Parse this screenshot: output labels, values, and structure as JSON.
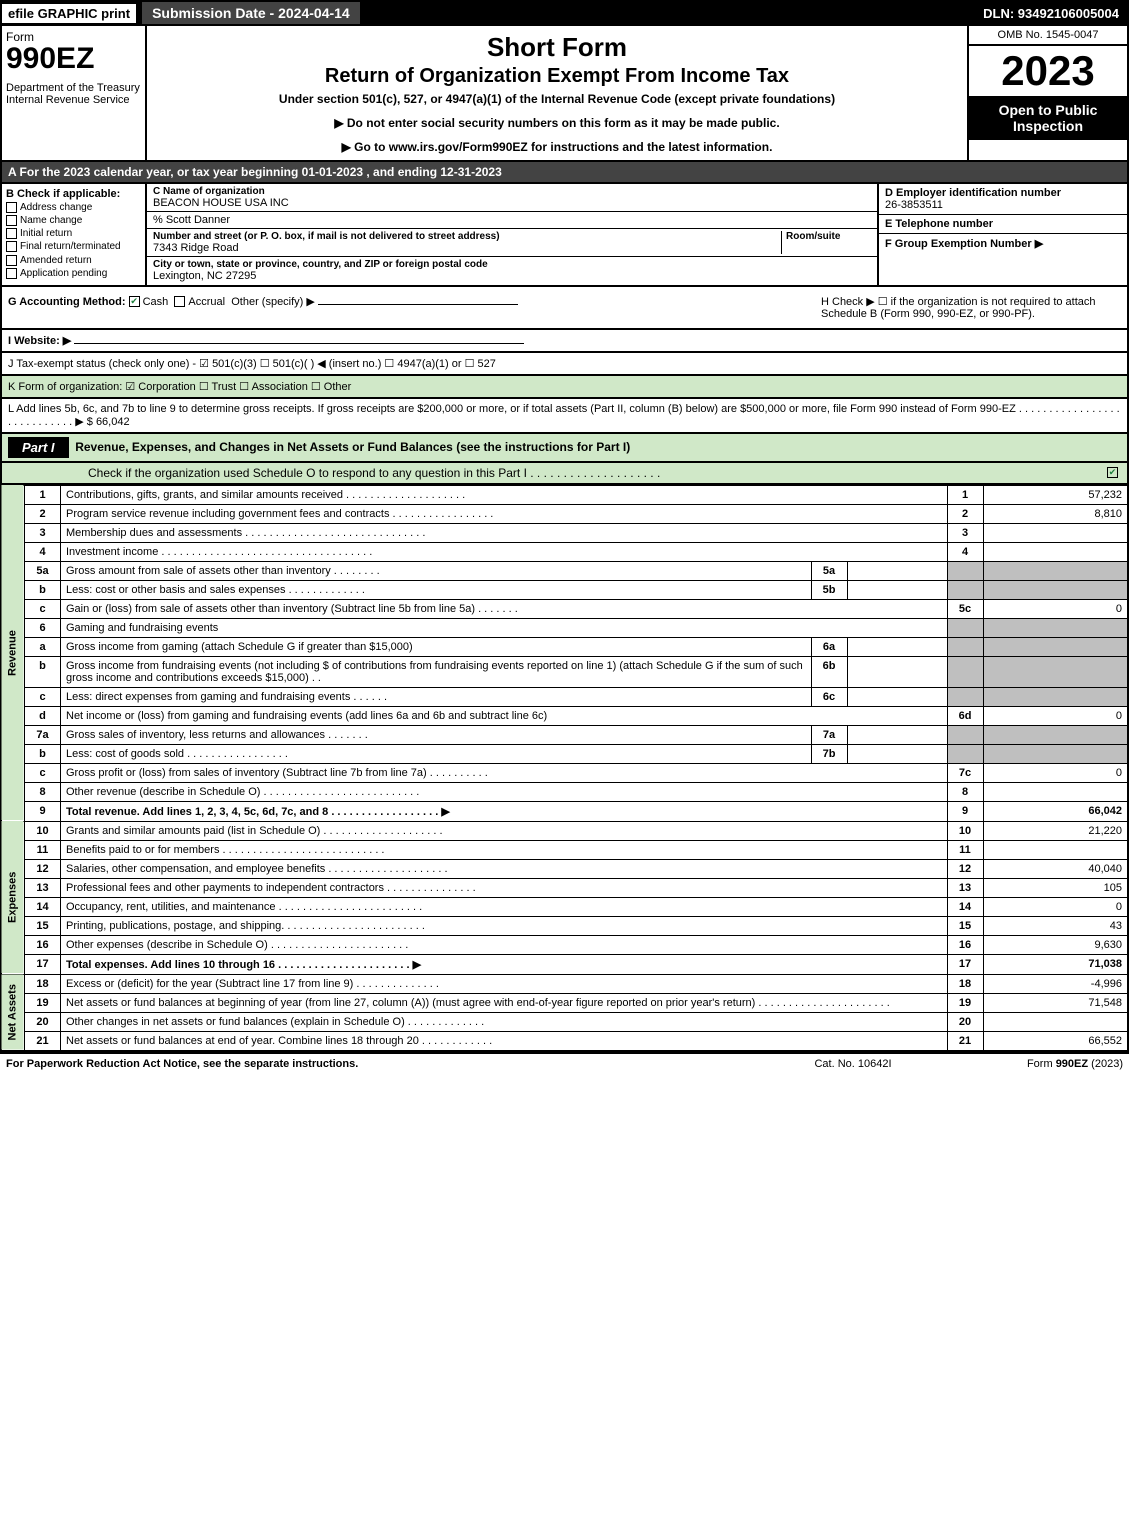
{
  "topbar": {
    "efile": "efile GRAPHIC print",
    "submission": "Submission Date - 2024-04-14",
    "dln": "DLN: 93492106005004"
  },
  "header": {
    "form_label": "Form",
    "form_num": "990EZ",
    "dept": "Department of the Treasury\nInternal Revenue Service",
    "title1": "Short Form",
    "title2": "Return of Organization Exempt From Income Tax",
    "sub": "Under section 501(c), 527, or 4947(a)(1) of the Internal Revenue Code (except private foundations)",
    "note1": "▶ Do not enter social security numbers on this form as it may be made public.",
    "note2": "▶ Go to www.irs.gov/Form990EZ for instructions and the latest information.",
    "omb": "OMB No. 1545-0047",
    "year": "2023",
    "open": "Open to Public Inspection"
  },
  "lineA": "A  For the 2023 calendar year, or tax year beginning 01-01-2023 , and ending 12-31-2023",
  "boxB": {
    "hdr": "B  Check if applicable:",
    "opts": [
      "Address change",
      "Name change",
      "Initial return",
      "Final return/terminated",
      "Amended return",
      "Application pending"
    ]
  },
  "boxC": {
    "name_label": "C Name of organization",
    "name": "BEACON HOUSE USA INC",
    "pct": "% Scott Danner",
    "street_label": "Number and street (or P. O. box, if mail is not delivered to street address)",
    "room_label": "Room/suite",
    "street": "7343 Ridge Road",
    "city_label": "City or town, state or province, country, and ZIP or foreign postal code",
    "city": "Lexington, NC  27295"
  },
  "boxD": {
    "hdr": "D Employer identification number",
    "val": "26-3853511"
  },
  "boxE": {
    "hdr": "E Telephone number",
    "val": ""
  },
  "boxF": {
    "hdr": "F Group Exemption Number  ▶",
    "val": ""
  },
  "rowG": {
    "g": "G Accounting Method:",
    "cash": "Cash",
    "accrual": "Accrual",
    "other": "Other (specify) ▶"
  },
  "rowH": "H  Check ▶  ☐  if the organization is not required to attach Schedule B (Form 990, 990-EZ, or 990-PF).",
  "rowI": "I Website: ▶",
  "rowJ": "J Tax-exempt status (check only one) -  ☑ 501(c)(3)  ☐ 501(c)(  ) ◀ (insert no.)  ☐ 4947(a)(1) or  ☐ 527",
  "rowK": "K Form of organization:  ☑ Corporation  ☐ Trust  ☐ Association  ☐ Other",
  "rowL": {
    "text": "L Add lines 5b, 6c, and 7b to line 9 to determine gross receipts. If gross receipts are $200,000 or more, or if total assets (Part II, column (B) below) are $500,000 or more, file Form 990 instead of Form 990-EZ  . . . . . . . . . . . . . . . . . . . . . . . . . . . .  ▶ $",
    "val": "66,042"
  },
  "part1": {
    "hdr": "Part I",
    "title": "Revenue, Expenses, and Changes in Net Assets or Fund Balances (see the instructions for Part I)",
    "sub": "Check if the organization used Schedule O to respond to any question in this Part I . . . . . . . . . . . . . . . . . . . .",
    "lines": [
      {
        "n": "1",
        "d": "Contributions, gifts, grants, and similar amounts received  . . . . . . . . . . . . . . . . . . . .",
        "rn": "1",
        "v": "57,232"
      },
      {
        "n": "2",
        "d": "Program service revenue including government fees and contracts  . . . . . . . . . . . . . . . . .",
        "rn": "2",
        "v": "8,810"
      },
      {
        "n": "3",
        "d": "Membership dues and assessments  . . . . . . . . . . . . . . . . . . . . . . . . . . . . . .",
        "rn": "3",
        "v": ""
      },
      {
        "n": "4",
        "d": "Investment income  . . . . . . . . . . . . . . . . . . . . . . . . . . . . . . . . . . .",
        "rn": "4",
        "v": ""
      },
      {
        "n": "5a",
        "d": "Gross amount from sale of assets other than inventory  . . . . . . . .",
        "sn": "5a",
        "sv": "",
        "grey": true
      },
      {
        "n": "b",
        "d": "Less: cost or other basis and sales expenses  . . . . . . . . . . . . .",
        "sn": "5b",
        "sv": "",
        "grey": true
      },
      {
        "n": "c",
        "d": "Gain or (loss) from sale of assets other than inventory (Subtract line 5b from line 5a)  . . . . . . .",
        "rn": "5c",
        "v": "0"
      },
      {
        "n": "6",
        "d": "Gaming and fundraising events",
        "grey": true,
        "nosub": true
      },
      {
        "n": "a",
        "d": "Gross income from gaming (attach Schedule G if greater than $15,000)",
        "sn": "6a",
        "sv": "",
        "grey": true
      },
      {
        "n": "b",
        "d": "Gross income from fundraising events (not including $                    of contributions from fundraising events reported on line 1) (attach Schedule G if the sum of such gross income and contributions exceeds $15,000)   . .",
        "sn": "6b",
        "sv": "",
        "grey": true
      },
      {
        "n": "c",
        "d": "Less: direct expenses from gaming and fundraising events   . . . . . .",
        "sn": "6c",
        "sv": "",
        "grey": true
      },
      {
        "n": "d",
        "d": "Net income or (loss) from gaming and fundraising events (add lines 6a and 6b and subtract line 6c)",
        "rn": "6d",
        "v": "0"
      },
      {
        "n": "7a",
        "d": "Gross sales of inventory, less returns and allowances  . . . . . . .",
        "sn": "7a",
        "sv": "",
        "grey": true
      },
      {
        "n": "b",
        "d": "Less: cost of goods sold      . . . . . . . . . . . . . . . . .",
        "sn": "7b",
        "sv": "",
        "grey": true
      },
      {
        "n": "c",
        "d": "Gross profit or (loss) from sales of inventory (Subtract line 7b from line 7a)  . . . . . . . . . .",
        "rn": "7c",
        "v": "0"
      },
      {
        "n": "8",
        "d": "Other revenue (describe in Schedule O)  . . . . . . . . . . . . . . . . . . . . . . . . . .",
        "rn": "8",
        "v": ""
      },
      {
        "n": "9",
        "d": "Total revenue. Add lines 1, 2, 3, 4, 5c, 6d, 7c, and 8   . . . . . . . . . . . . . . . . . .  ▶",
        "rn": "9",
        "v": "66,042",
        "bold": true
      }
    ],
    "expenses": [
      {
        "n": "10",
        "d": "Grants and similar amounts paid (list in Schedule O)  . . . . . . . . . . . . . . . . . . . .",
        "rn": "10",
        "v": "21,220"
      },
      {
        "n": "11",
        "d": "Benefits paid to or for members    . . . . . . . . . . . . . . . . . . . . . . . . . . .",
        "rn": "11",
        "v": ""
      },
      {
        "n": "12",
        "d": "Salaries, other compensation, and employee benefits  . . . . . . . . . . . . . . . . . . . .",
        "rn": "12",
        "v": "40,040"
      },
      {
        "n": "13",
        "d": "Professional fees and other payments to independent contractors  . . . . . . . . . . . . . . .",
        "rn": "13",
        "v": "105"
      },
      {
        "n": "14",
        "d": "Occupancy, rent, utilities, and maintenance  . . . . . . . . . . . . . . . . . . . . . . . .",
        "rn": "14",
        "v": "0"
      },
      {
        "n": "15",
        "d": "Printing, publications, postage, and shipping.  . . . . . . . . . . . . . . . . . . . . . . .",
        "rn": "15",
        "v": "43"
      },
      {
        "n": "16",
        "d": "Other expenses (describe in Schedule O)    . . . . . . . . . . . . . . . . . . . . . . .",
        "rn": "16",
        "v": "9,630"
      },
      {
        "n": "17",
        "d": "Total expenses. Add lines 10 through 16    . . . . . . . . . . . . . . . . . . . . . .  ▶",
        "rn": "17",
        "v": "71,038",
        "bold": true
      }
    ],
    "netassets": [
      {
        "n": "18",
        "d": "Excess or (deficit) for the year (Subtract line 17 from line 9)      . . . . . . . . . . . . . .",
        "rn": "18",
        "v": "-4,996"
      },
      {
        "n": "19",
        "d": "Net assets or fund balances at beginning of year (from line 27, column (A)) (must agree with end-of-year figure reported on prior year's return)  . . . . . . . . . . . . . . . . . . . . . .",
        "rn": "19",
        "v": "71,548"
      },
      {
        "n": "20",
        "d": "Other changes in net assets or fund balances (explain in Schedule O)  . . . . . . . . . . . . .",
        "rn": "20",
        "v": ""
      },
      {
        "n": "21",
        "d": "Net assets or fund balances at end of year. Combine lines 18 through 20  . . . . . . . . . . . .",
        "rn": "21",
        "v": "66,552"
      }
    ],
    "sidelabels": {
      "rev": "Revenue",
      "exp": "Expenses",
      "net": "Net Assets"
    }
  },
  "footer": {
    "l": "For Paperwork Reduction Act Notice, see the separate instructions.",
    "c": "Cat. No. 10642I",
    "r": "Form 990-EZ (2023)"
  }
}
